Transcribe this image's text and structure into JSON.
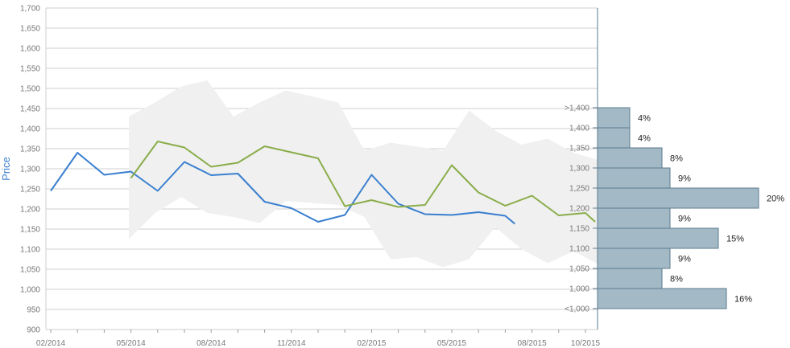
{
  "chart_data": {
    "type": "line",
    "ylabel": "Price",
    "ylim": [
      900,
      1700
    ],
    "yticks": [
      "1,700",
      "1,650",
      "1,600",
      "1,550",
      "1,500",
      "1,450",
      "1,400",
      "1,350",
      "1,300",
      "1,250",
      "1,200",
      "1,150",
      "1,100",
      "1,050",
      "1,000",
      "950",
      "900"
    ],
    "xticks": [
      "02/2014",
      "05/2014",
      "08/2014",
      "11/2014",
      "02/2015",
      "05/2015",
      "08/2015",
      "10/2015"
    ],
    "grid": true,
    "colors": {
      "blue_series": "#3a7fcf",
      "green_series": "#8aad4a",
      "band": "#f0f0f0",
      "histogram": "#a3b9c6",
      "axis": "#5b7b8f"
    },
    "series": [
      {
        "color": "#3a7fcf",
        "points": [
          [
            "02/2014",
            1245
          ],
          [
            "03/2014",
            1340
          ],
          [
            "04/2014",
            1285
          ],
          [
            "05/2014",
            1293
          ],
          [
            "06/2014",
            1245
          ],
          [
            "07/2014",
            1317
          ],
          [
            "08/2014",
            1284
          ],
          [
            "09/2014",
            1288
          ],
          [
            "10/2014",
            1218
          ],
          [
            "11/2014",
            1202
          ],
          [
            "12/2014",
            1168
          ],
          [
            "01/2015",
            1185
          ],
          [
            "02/2015",
            1285
          ],
          [
            "03/2015",
            1213
          ],
          [
            "04/2015",
            1187
          ],
          [
            "05/2015",
            1185
          ],
          [
            "06/2015",
            1192
          ],
          [
            "07/2015",
            1183
          ],
          [
            "07/2015",
            1163
          ]
        ]
      },
      {
        "color": "#8aad4a",
        "points": [
          [
            "05/2014",
            1277
          ],
          [
            "06/2014",
            1368
          ],
          [
            "07/2014",
            1353
          ],
          [
            "08/2014",
            1305
          ],
          [
            "09/2014",
            1315
          ],
          [
            "10/2014",
            1356
          ],
          [
            "11/2014",
            1341
          ],
          [
            "12/2014",
            1326
          ],
          [
            "01/2015",
            1207
          ],
          [
            "02/2015",
            1222
          ],
          [
            "03/2015",
            1205
          ],
          [
            "04/2015",
            1210
          ],
          [
            "05/2015",
            1309
          ],
          [
            "06/2015",
            1241
          ],
          [
            "07/2015",
            1208
          ],
          [
            "08/2015",
            1233
          ],
          [
            "09/2015",
            1184
          ],
          [
            "10/2015",
            1190
          ],
          [
            "10/2015",
            1168
          ]
        ]
      }
    ],
    "band": {
      "upper": [
        1430,
        1465,
        1505,
        1520,
        1430,
        1465,
        1495,
        1480,
        1465,
        1345,
        1365,
        1355,
        1345,
        1445,
        1395,
        1360,
        1375,
        1340,
        1320
      ],
      "lower": [
        1125,
        1190,
        1230,
        1190,
        1180,
        1165,
        1220,
        1215,
        1210,
        1180,
        1075,
        1080,
        1055,
        1075,
        1155,
        1100,
        1065,
        1095,
        1060
      ]
    },
    "histogram": {
      "bins": [
        {
          "label": ">1,400",
          "percent": "4%",
          "value": 4
        },
        {
          "label": "1,400",
          "percent": "4%",
          "value": 4
        },
        {
          "label": "1,350",
          "percent": "8%",
          "value": 8
        },
        {
          "label": "1,300",
          "percent": "9%",
          "value": 9
        },
        {
          "label": "1,250",
          "percent": "20%",
          "value": 20
        },
        {
          "label": "1,200",
          "percent": "9%",
          "value": 9
        },
        {
          "label": "1,150",
          "percent": "15%",
          "value": 15
        },
        {
          "label": "1,100",
          "percent": "9%",
          "value": 9
        },
        {
          "label": "1,050",
          "percent": "8%",
          "value": 8
        },
        {
          "label": "1,000",
          "percent": "16%",
          "value": 16
        }
      ],
      "bottom_label": "<1,000"
    }
  }
}
